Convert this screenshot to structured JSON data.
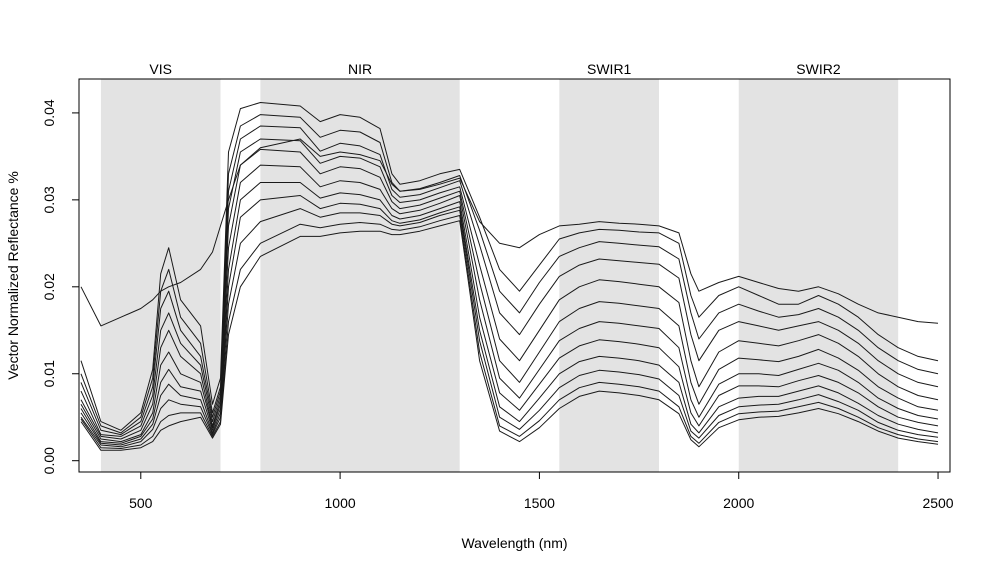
{
  "chart_data": {
    "type": "line",
    "title": "",
    "xlabel": "Wavelength (nm)",
    "ylabel": "Vector Normalized Reflectance %",
    "xlim": [
      350,
      2500
    ],
    "ylim": [
      0.0,
      0.042
    ],
    "x_ticks": [
      {
        "value": 500,
        "label": "500"
      },
      {
        "value": 1000,
        "label": "1000"
      },
      {
        "value": 1500,
        "label": "1500"
      },
      {
        "value": 2000,
        "label": "2000"
      },
      {
        "value": 2500,
        "label": "2500"
      }
    ],
    "y_ticks": [
      {
        "value": 0.0,
        "label": "0.00"
      },
      {
        "value": 0.01,
        "label": "0.01"
      },
      {
        "value": 0.02,
        "label": "0.02"
      },
      {
        "value": 0.03,
        "label": "0.03"
      },
      {
        "value": 0.04,
        "label": "0.04"
      }
    ],
    "grid": false,
    "legend": "none",
    "line_color": "#1a1a1a",
    "band_color": "#e3e3e3",
    "bands": [
      {
        "label": "VIS",
        "start": 400,
        "end": 700
      },
      {
        "label": "NIR",
        "start": 800,
        "end": 1300
      },
      {
        "label": "SWIR1",
        "start": 1550,
        "end": 1800
      },
      {
        "label": "SWIR2",
        "start": 2000,
        "end": 2400
      }
    ],
    "x": [
      350,
      400,
      450,
      500,
      530,
      550,
      570,
      600,
      650,
      680,
      700,
      720,
      750,
      800,
      900,
      950,
      1000,
      1050,
      1100,
      1130,
      1150,
      1200,
      1250,
      1300,
      1350,
      1400,
      1450,
      1500,
      1550,
      1600,
      1650,
      1700,
      1750,
      1800,
      1850,
      1880,
      1900,
      1950,
      2000,
      2050,
      2100,
      2150,
      2200,
      2250,
      2300,
      2350,
      2400,
      2450,
      2500
    ],
    "series": [
      {
        "values": [
          0.0115,
          0.0045,
          0.0035,
          0.0055,
          0.0105,
          0.0215,
          0.0245,
          0.0185,
          0.0155,
          0.0065,
          0.0095,
          0.0355,
          0.0405,
          0.0412,
          0.0408,
          0.039,
          0.0398,
          0.0395,
          0.0382,
          0.033,
          0.0318,
          0.0322,
          0.033,
          0.0335,
          0.028,
          0.022,
          0.0195,
          0.0225,
          0.0255,
          0.0262,
          0.0266,
          0.0265,
          0.0263,
          0.0262,
          0.025,
          0.019,
          0.0165,
          0.019,
          0.02,
          0.019,
          0.018,
          0.018,
          0.019,
          0.018,
          0.0165,
          0.0145,
          0.013,
          0.012,
          0.0115
        ]
      },
      {
        "values": [
          0.01,
          0.004,
          0.0032,
          0.005,
          0.0095,
          0.0195,
          0.022,
          0.0165,
          0.0135,
          0.0055,
          0.0085,
          0.033,
          0.0385,
          0.0398,
          0.0395,
          0.0372,
          0.038,
          0.0378,
          0.0366,
          0.032,
          0.031,
          0.0313,
          0.032,
          0.0328,
          0.0265,
          0.0195,
          0.017,
          0.0205,
          0.0235,
          0.0245,
          0.0252,
          0.025,
          0.0248,
          0.0246,
          0.0232,
          0.017,
          0.014,
          0.017,
          0.018,
          0.0172,
          0.0165,
          0.0168,
          0.0175,
          0.0165,
          0.015,
          0.013,
          0.0115,
          0.0105,
          0.01
        ]
      },
      {
        "values": [
          0.009,
          0.0035,
          0.003,
          0.0045,
          0.0085,
          0.0175,
          0.0195,
          0.015,
          0.012,
          0.005,
          0.008,
          0.031,
          0.037,
          0.0385,
          0.0383,
          0.0356,
          0.0365,
          0.0362,
          0.0352,
          0.0312,
          0.0303,
          0.0306,
          0.0314,
          0.0322,
          0.0248,
          0.017,
          0.0145,
          0.018,
          0.0212,
          0.0225,
          0.0232,
          0.023,
          0.0228,
          0.0226,
          0.021,
          0.0145,
          0.0115,
          0.015,
          0.016,
          0.0155,
          0.015,
          0.0155,
          0.016,
          0.015,
          0.0135,
          0.0115,
          0.01,
          0.009,
          0.0085
        ]
      },
      {
        "values": [
          0.008,
          0.003,
          0.0028,
          0.004,
          0.0075,
          0.015,
          0.017,
          0.0135,
          0.011,
          0.0045,
          0.0075,
          0.029,
          0.0355,
          0.037,
          0.0368,
          0.0342,
          0.035,
          0.0348,
          0.0338,
          0.0305,
          0.0297,
          0.03,
          0.0308,
          0.0315,
          0.0225,
          0.014,
          0.0115,
          0.015,
          0.0185,
          0.02,
          0.0208,
          0.0206,
          0.0203,
          0.02,
          0.0182,
          0.0115,
          0.0085,
          0.0125,
          0.0138,
          0.0135,
          0.0132,
          0.0138,
          0.0145,
          0.0135,
          0.012,
          0.01,
          0.0085,
          0.0075,
          0.007
        ]
      },
      {
        "values": [
          0.007,
          0.0028,
          0.0025,
          0.0035,
          0.0065,
          0.013,
          0.015,
          0.012,
          0.01,
          0.004,
          0.007,
          0.027,
          0.034,
          0.0358,
          0.0355,
          0.033,
          0.0338,
          0.0336,
          0.0326,
          0.0298,
          0.029,
          0.0294,
          0.0302,
          0.031,
          0.0205,
          0.0115,
          0.009,
          0.0125,
          0.016,
          0.0175,
          0.0183,
          0.0181,
          0.0178,
          0.0175,
          0.0155,
          0.009,
          0.0065,
          0.0105,
          0.0118,
          0.0116,
          0.0114,
          0.012,
          0.0128,
          0.0118,
          0.0104,
          0.0085,
          0.0072,
          0.0062,
          0.0058
        ]
      },
      {
        "values": [
          0.0065,
          0.0025,
          0.0022,
          0.003,
          0.0055,
          0.011,
          0.0125,
          0.01,
          0.009,
          0.0038,
          0.0065,
          0.0245,
          0.032,
          0.034,
          0.0338,
          0.0315,
          0.0322,
          0.032,
          0.0312,
          0.029,
          0.0284,
          0.0288,
          0.0296,
          0.0305,
          0.0185,
          0.0095,
          0.0072,
          0.0105,
          0.0138,
          0.0152,
          0.016,
          0.0158,
          0.0155,
          0.0152,
          0.013,
          0.007,
          0.005,
          0.0088,
          0.01,
          0.01,
          0.0098,
          0.0105,
          0.0112,
          0.0104,
          0.009,
          0.0072,
          0.006,
          0.0052,
          0.0048
        ]
      },
      {
        "values": [
          0.006,
          0.0022,
          0.002,
          0.0028,
          0.0048,
          0.009,
          0.0105,
          0.0085,
          0.008,
          0.0035,
          0.006,
          0.022,
          0.03,
          0.032,
          0.032,
          0.0302,
          0.0308,
          0.0306,
          0.03,
          0.0282,
          0.0278,
          0.0282,
          0.029,
          0.0298,
          0.0165,
          0.0078,
          0.0058,
          0.0088,
          0.0118,
          0.0132,
          0.0139,
          0.0137,
          0.0134,
          0.013,
          0.0108,
          0.0055,
          0.004,
          0.0075,
          0.0086,
          0.0086,
          0.0085,
          0.0092,
          0.0098,
          0.009,
          0.0078,
          0.0062,
          0.005,
          0.0044,
          0.004
        ]
      },
      {
        "values": [
          0.0055,
          0.002,
          0.0018,
          0.0025,
          0.0042,
          0.0075,
          0.0088,
          0.0075,
          0.007,
          0.0032,
          0.0055,
          0.02,
          0.028,
          0.03,
          0.0305,
          0.029,
          0.0296,
          0.0295,
          0.029,
          0.0276,
          0.0273,
          0.0277,
          0.0285,
          0.0292,
          0.015,
          0.0062,
          0.0045,
          0.0072,
          0.01,
          0.0114,
          0.012,
          0.0118,
          0.0115,
          0.011,
          0.009,
          0.0042,
          0.0032,
          0.0062,
          0.0072,
          0.0074,
          0.0074,
          0.008,
          0.0086,
          0.0078,
          0.0066,
          0.0052,
          0.0042,
          0.0036,
          0.0032
        ]
      },
      {
        "values": [
          0.005,
          0.0018,
          0.0016,
          0.0022,
          0.0036,
          0.006,
          0.007,
          0.0065,
          0.0062,
          0.003,
          0.005,
          0.018,
          0.025,
          0.0275,
          0.029,
          0.028,
          0.0285,
          0.0285,
          0.0282,
          0.0272,
          0.027,
          0.0274,
          0.0282,
          0.0288,
          0.0138,
          0.005,
          0.0036,
          0.0058,
          0.0084,
          0.0098,
          0.0104,
          0.0102,
          0.0099,
          0.0094,
          0.0075,
          0.0034,
          0.0026,
          0.0052,
          0.0062,
          0.0064,
          0.0065,
          0.007,
          0.0076,
          0.0068,
          0.0058,
          0.0044,
          0.0035,
          0.003,
          0.0027
        ]
      },
      {
        "values": [
          0.0048,
          0.0015,
          0.0014,
          0.0018,
          0.0028,
          0.0045,
          0.0052,
          0.0055,
          0.0055,
          0.0028,
          0.0045,
          0.016,
          0.022,
          0.025,
          0.0272,
          0.0268,
          0.0272,
          0.0274,
          0.0272,
          0.0266,
          0.0265,
          0.0269,
          0.0276,
          0.0282,
          0.0125,
          0.004,
          0.0028,
          0.0046,
          0.007,
          0.0084,
          0.009,
          0.0088,
          0.0085,
          0.008,
          0.0062,
          0.0028,
          0.002,
          0.0044,
          0.0054,
          0.0056,
          0.0057,
          0.0062,
          0.0067,
          0.006,
          0.005,
          0.0038,
          0.003,
          0.0025,
          0.0022
        ]
      },
      {
        "values": [
          0.0045,
          0.0012,
          0.0012,
          0.0015,
          0.0022,
          0.0035,
          0.004,
          0.0045,
          0.005,
          0.0026,
          0.0042,
          0.0145,
          0.02,
          0.0235,
          0.0258,
          0.0258,
          0.0262,
          0.0264,
          0.0264,
          0.026,
          0.026,
          0.0264,
          0.027,
          0.0276,
          0.0115,
          0.0034,
          0.0022,
          0.0038,
          0.006,
          0.0074,
          0.008,
          0.0078,
          0.0075,
          0.007,
          0.0054,
          0.0024,
          0.0016,
          0.0038,
          0.0047,
          0.005,
          0.0051,
          0.0055,
          0.006,
          0.0054,
          0.0045,
          0.0034,
          0.0026,
          0.0022,
          0.0019
        ]
      },
      {
        "values": [
          0.02,
          0.0155,
          0.0165,
          0.0175,
          0.0185,
          0.0195,
          0.02,
          0.0205,
          0.022,
          0.024,
          0.027,
          0.03,
          0.034,
          0.036,
          0.037,
          0.035,
          0.0355,
          0.0352,
          0.0345,
          0.0318,
          0.031,
          0.0312,
          0.0318,
          0.0325,
          0.0275,
          0.025,
          0.0245,
          0.026,
          0.027,
          0.0272,
          0.0275,
          0.0273,
          0.0272,
          0.027,
          0.0262,
          0.0215,
          0.0195,
          0.0205,
          0.0212,
          0.0205,
          0.0198,
          0.0195,
          0.02,
          0.0192,
          0.018,
          0.017,
          0.0165,
          0.016,
          0.0158
        ]
      }
    ]
  }
}
